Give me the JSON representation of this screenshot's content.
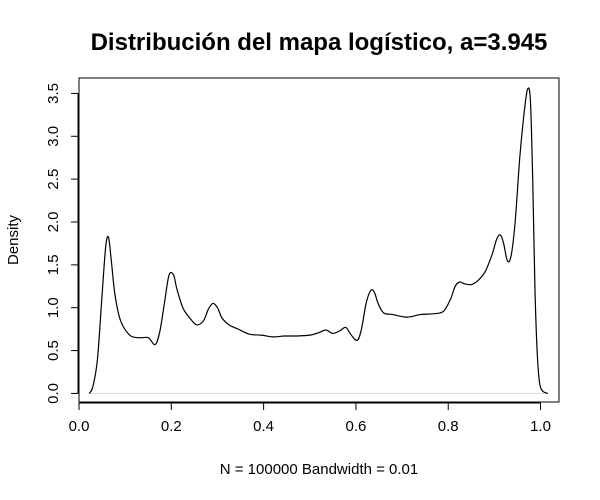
{
  "chart_data": {
    "type": "line",
    "title": "Distribución del mapa logístico, a=3.945",
    "xlabel": "N = 100000   Bandwidth = 0.01",
    "ylabel": "Density",
    "xlim": [
      0.0,
      1.04
    ],
    "ylim": [
      -0.1,
      3.68
    ],
    "x_ticks": [
      0.0,
      0.2,
      0.4,
      0.6,
      0.8,
      1.0
    ],
    "x_tick_labels": [
      "0.0",
      "0.2",
      "0.4",
      "0.6",
      "0.8",
      "1.0"
    ],
    "y_ticks": [
      0.0,
      0.5,
      1.0,
      1.5,
      2.0,
      2.5,
      3.0,
      3.5
    ],
    "y_tick_labels": [
      "0.0",
      "0.5",
      "1.0",
      "1.5",
      "2.0",
      "2.5",
      "3.0",
      "3.5"
    ],
    "grid": false,
    "legend": "none",
    "baseline": 0,
    "series": [
      {
        "color": "#000000",
        "x": [
          0.022,
          0.03,
          0.04,
          0.05,
          0.058,
          0.064,
          0.07,
          0.078,
          0.09,
          0.11,
          0.13,
          0.15,
          0.165,
          0.175,
          0.185,
          0.195,
          0.205,
          0.212,
          0.225,
          0.24,
          0.255,
          0.27,
          0.28,
          0.29,
          0.3,
          0.31,
          0.325,
          0.345,
          0.37,
          0.395,
          0.42,
          0.445,
          0.47,
          0.5,
          0.52,
          0.535,
          0.55,
          0.565,
          0.578,
          0.59,
          0.603,
          0.612,
          0.622,
          0.632,
          0.64,
          0.648,
          0.66,
          0.68,
          0.71,
          0.74,
          0.77,
          0.79,
          0.805,
          0.815,
          0.825,
          0.835,
          0.85,
          0.865,
          0.88,
          0.895,
          0.905,
          0.913,
          0.92,
          0.928,
          0.936,
          0.945,
          0.955,
          0.965,
          0.972,
          0.978,
          0.983,
          0.988,
          0.993,
          0.998,
          1.004,
          1.01,
          1.016
        ],
        "y": [
          0.0,
          0.08,
          0.4,
          1.15,
          1.72,
          1.82,
          1.55,
          1.15,
          0.85,
          0.68,
          0.65,
          0.65,
          0.57,
          0.72,
          1.05,
          1.38,
          1.38,
          1.22,
          1.0,
          0.88,
          0.8,
          0.85,
          0.98,
          1.05,
          1.0,
          0.88,
          0.8,
          0.75,
          0.69,
          0.68,
          0.66,
          0.67,
          0.67,
          0.68,
          0.71,
          0.74,
          0.7,
          0.73,
          0.77,
          0.68,
          0.62,
          0.75,
          1.05,
          1.2,
          1.18,
          1.05,
          0.94,
          0.92,
          0.89,
          0.92,
          0.93,
          0.96,
          1.1,
          1.25,
          1.3,
          1.28,
          1.27,
          1.32,
          1.42,
          1.62,
          1.8,
          1.85,
          1.75,
          1.55,
          1.6,
          2.0,
          2.75,
          3.3,
          3.55,
          3.42,
          2.5,
          1.2,
          0.45,
          0.12,
          0.03,
          0.01,
          0.0
        ]
      }
    ]
  }
}
